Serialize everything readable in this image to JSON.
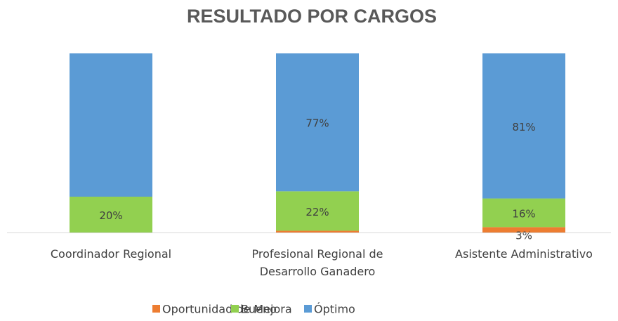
{
  "chart_data": {
    "type": "stacked_bar",
    "title": "RESULTADO POR CARGOS",
    "categories": [
      "Coordinador Regional",
      "Profesional Regional de Desarrollo Ganadero",
      "Asistente Administrativo"
    ],
    "series": [
      {
        "name": "Oportunidad de Mejora",
        "color": "#ed7d31",
        "values": [
          0,
          1,
          3
        ],
        "value_labels": [
          null,
          null,
          "3%"
        ]
      },
      {
        "name": "Bueno",
        "color": "#92d050",
        "values": [
          20,
          22,
          16
        ],
        "value_labels": [
          "20%",
          "22%",
          "16%"
        ]
      },
      {
        "name": "Óptimo",
        "color": "#5b9bd5",
        "values": [
          80,
          77,
          81
        ],
        "value_labels": [
          null,
          "77%",
          "81%"
        ]
      }
    ],
    "ylim": [
      0,
      100
    ],
    "legend": "bottom"
  }
}
